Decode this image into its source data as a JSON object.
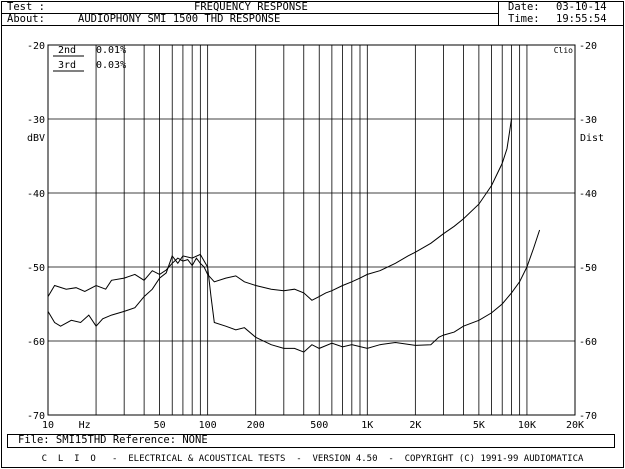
{
  "header": {
    "test_label": "Test :",
    "about_label": "About:",
    "title": "FREQUENCY RESPONSE",
    "about_text": "AUDIOPHONY SMI 1500 THD RESPONSE",
    "date_label": "Date:",
    "date_value": "03-10-14",
    "time_label": "Time:",
    "time_value": "19:55:54"
  },
  "chart_data": {
    "type": "line",
    "xscale": "log",
    "xlim": [
      10,
      20000
    ],
    "ylim": [
      -70,
      -20
    ],
    "x_ticks": [
      "10",
      "Hz",
      "50",
      "100",
      "200",
      "500",
      "1K",
      "2K",
      "5K",
      "10K",
      "20K"
    ],
    "y_ticks": [
      "-20",
      "-30",
      "-40",
      "-50",
      "-60",
      "-70"
    ],
    "ylabel_left": "dBV",
    "ylabel_right": "Dist",
    "brand": "Clio",
    "grid": true,
    "legend": [
      {
        "name": "2nd",
        "value": "0.01%"
      },
      {
        "name": "3rd",
        "value": "0.03%"
      }
    ],
    "series": [
      {
        "name": "2nd",
        "x": [
          10,
          11,
          13,
          15,
          17,
          20,
          23,
          25,
          30,
          35,
          40,
          45,
          50,
          55,
          60,
          65,
          70,
          75,
          80,
          85,
          90,
          95,
          100,
          110,
          130,
          150,
          170,
          200,
          250,
          300,
          350,
          400,
          450,
          500,
          550,
          600,
          700,
          800,
          900,
          1000,
          1200,
          1500,
          1800,
          2000,
          2500,
          3000,
          3500,
          4000,
          5000,
          6000,
          7000,
          7500,
          8000
        ],
        "y": [
          -54,
          -52.5,
          -53,
          -52.8,
          -53.3,
          -52.5,
          -53,
          -51.8,
          -51.5,
          -51,
          -51.8,
          -50.5,
          -51,
          -50.4,
          -49.5,
          -48.8,
          -49.2,
          -49,
          -49.8,
          -48.8,
          -49.5,
          -50,
          -51,
          -52,
          -51.5,
          -51.2,
          -52,
          -52.5,
          -53,
          -53.2,
          -53,
          -53.5,
          -54.5,
          -54,
          -53.5,
          -53.2,
          -52.5,
          -52,
          -51.5,
          -51,
          -50.5,
          -49.5,
          -48.5,
          -48,
          -46.8,
          -45.5,
          -44.5,
          -43.5,
          -41.5,
          -39,
          -36,
          -34,
          -30
        ]
      },
      {
        "name": "3rd",
        "x": [
          10,
          11,
          12,
          14,
          16,
          18,
          20,
          22,
          25,
          30,
          35,
          40,
          45,
          50,
          55,
          60,
          65,
          70,
          80,
          90,
          100,
          105,
          110,
          130,
          150,
          170,
          200,
          250,
          300,
          350,
          400,
          450,
          500,
          600,
          700,
          800,
          1000,
          1200,
          1500,
          2000,
          2500,
          2800,
          3000,
          3500,
          4000,
          5000,
          6000,
          7000,
          8000,
          9000,
          10000,
          11000,
          12000
        ],
        "y": [
          -56,
          -57.5,
          -58,
          -57.2,
          -57.5,
          -56.5,
          -58,
          -57,
          -56.5,
          -56,
          -55.5,
          -54,
          -53,
          -51.5,
          -50.8,
          -48.5,
          -49.5,
          -48.5,
          -48.8,
          -48.3,
          -50,
          -54,
          -57.5,
          -58,
          -58.5,
          -58.2,
          -59.5,
          -60.5,
          -61,
          -61,
          -61.5,
          -60.5,
          -61,
          -60.3,
          -60.8,
          -60.5,
          -61,
          -60.5,
          -60.2,
          -60.6,
          -60.5,
          -59.5,
          -59.2,
          -58.8,
          -58,
          -57.2,
          -56.2,
          -55,
          -53.5,
          -52,
          -50,
          -47.5,
          -45
        ]
      }
    ]
  },
  "file_bar": {
    "text": "File: SMI15THD Reference: NONE"
  },
  "footer": {
    "text": "C  L  I  O   -  ELECTRICAL & ACOUSTICAL TESTS  -  VERSION 4.50  -  COPYRIGHT (C) 1991-99 AUDIOMATICA"
  }
}
